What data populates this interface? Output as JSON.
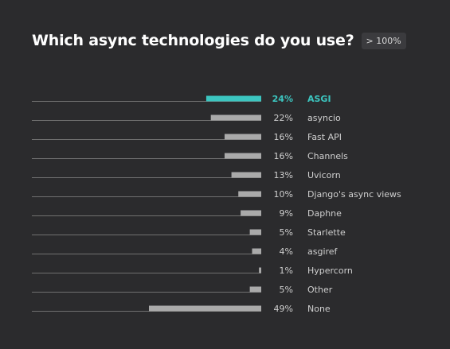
{
  "header": {
    "title": "Which async technologies do you use?",
    "badge": "> 100%"
  },
  "colors": {
    "background": "#2b2b2d",
    "bar": "#aaaaaa",
    "highlight": "#3cc6c0",
    "baseline": "#707070"
  },
  "chart_data": {
    "type": "bar",
    "orientation": "horizontal",
    "title": "Which async technologies do you use?",
    "xlim": [
      0,
      49
    ],
    "grid": false,
    "highlight_index": 0,
    "categories": [
      "ASGI",
      "asyncio",
      "Fast API",
      "Channels",
      "Uvicorn",
      "Django's async views",
      "Daphne",
      "Starlette",
      "asgiref",
      "Hypercorn",
      "Other",
      "None"
    ],
    "values": [
      24,
      22,
      16,
      16,
      13,
      10,
      9,
      5,
      4,
      1,
      5,
      49
    ],
    "value_labels": [
      "24%",
      "22%",
      "16%",
      "16%",
      "13%",
      "10%",
      "9%",
      "5%",
      "4%",
      "1%",
      "5%",
      "49%"
    ]
  }
}
